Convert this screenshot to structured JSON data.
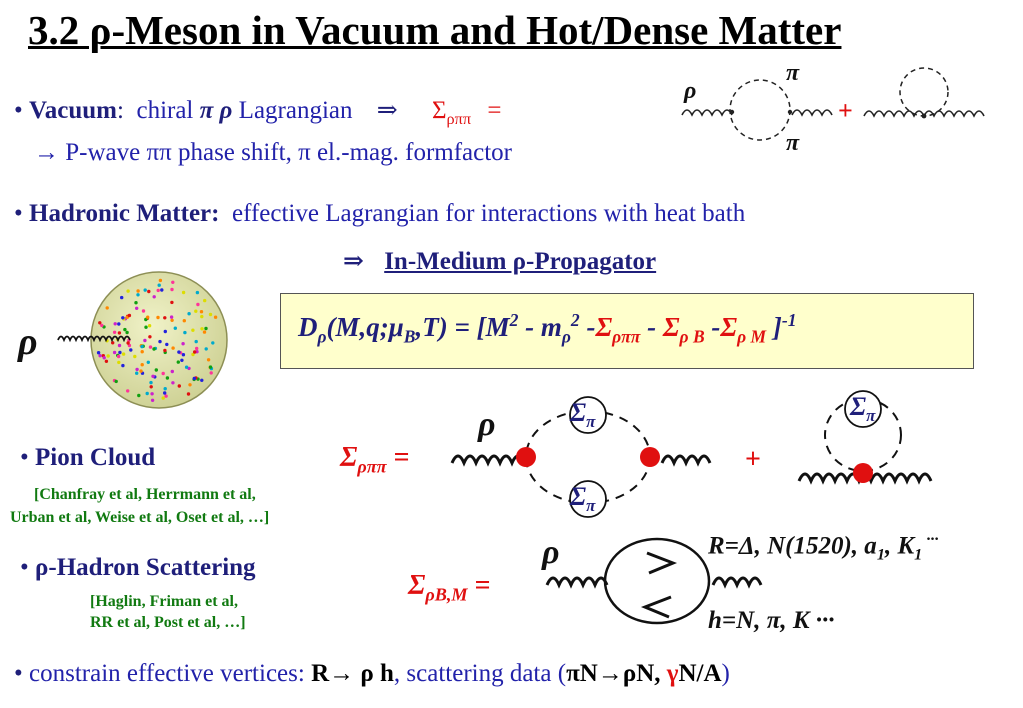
{
  "title": "3.2  ρ-Meson in Vacuum and Hot/Dense Matter",
  "vacuum": {
    "bullet": "•",
    "heading": "Vacuum",
    "colon": ":",
    "text1": "chiral",
    "pi_rho": "π ρ",
    "text2": "Lagrangian",
    "arrow": "⇒",
    "sigma_label": "Σ",
    "sigma_sub": "ρππ",
    "eq": "=",
    "line2": "→ P-wave ππ  phase shift, π  el.-mag. formfactor",
    "diagram_rho": "ρ",
    "diagram_pi_top": "π",
    "diagram_pi_bottom": "π",
    "plus": "+"
  },
  "hadronic": {
    "bullet": "•",
    "heading": "Hadronic Matter:",
    "text": "effective Lagrangian for interactions with heat bath",
    "arrow": "⇒",
    "propagator": "In-Medium ρ-Propagator",
    "rho_symbol": "ρ"
  },
  "formula": {
    "D": "D",
    "D_sub": "ρ",
    "args_a": "(M,q;μ",
    "args_sub": "B",
    "args_b": ",T) = [M",
    "sq1": "2",
    "minus_m": " - m",
    "m_sub": "ρ",
    "sq2": "2",
    "minus1": " -",
    "sig1": "Σ",
    "sig1_sub": "ρππ",
    "minus2": " - ",
    "sig2": "Σ",
    "sig2_sub": "ρ B",
    "minus3": " -",
    "sig3": "Σ",
    "sig3_sub": "ρ M",
    "close": " ]",
    "power": "-1"
  },
  "pion_cloud": {
    "bullet": "•",
    "heading": "Pion Cloud",
    "refs_line1": "[Chanfray et al,  Herrmann et al,",
    "refs_line2": "Urban et al, Weise et al, Oset et al, …]",
    "sigma": "Σ",
    "sigma_sub": "ρππ",
    "eq": " =",
    "rho": "ρ",
    "self_energy": "Σ",
    "self_energy_sub": "π",
    "plus": "+"
  },
  "rho_hadron": {
    "bullet": "•",
    "heading": "ρ-Hadron Scattering",
    "refs_line1": "[Haglin, Friman et al,",
    "refs_line2": "RR et al, Post et al, …]",
    "sigma": "Σ",
    "sigma_sub": "ρB,M",
    "eq": " =",
    "rho": "ρ",
    "R_line": "R=Δ, N(1520), a",
    "R_sub1": "1",
    "R_comma": ", K",
    "R_sub2": "1",
    "R_dots": " ···",
    "h_line": "h=N,  π, K ···"
  },
  "constrain": {
    "bullet": "•",
    "text1": "constrain effective vertices: ",
    "bold1": "R→ ρ h",
    "text2": ", scattering data (",
    "bold2": "πN→ρN, ",
    "gamma": "γ",
    "bold3": "N/A",
    "text3": ")"
  },
  "colors": {
    "navy": "#1f1f7a",
    "blue": "#2222aa",
    "red": "#e01010",
    "green": "#117a11",
    "formula_bg": "#ffffcc",
    "fireball": "#e4e7b4"
  }
}
